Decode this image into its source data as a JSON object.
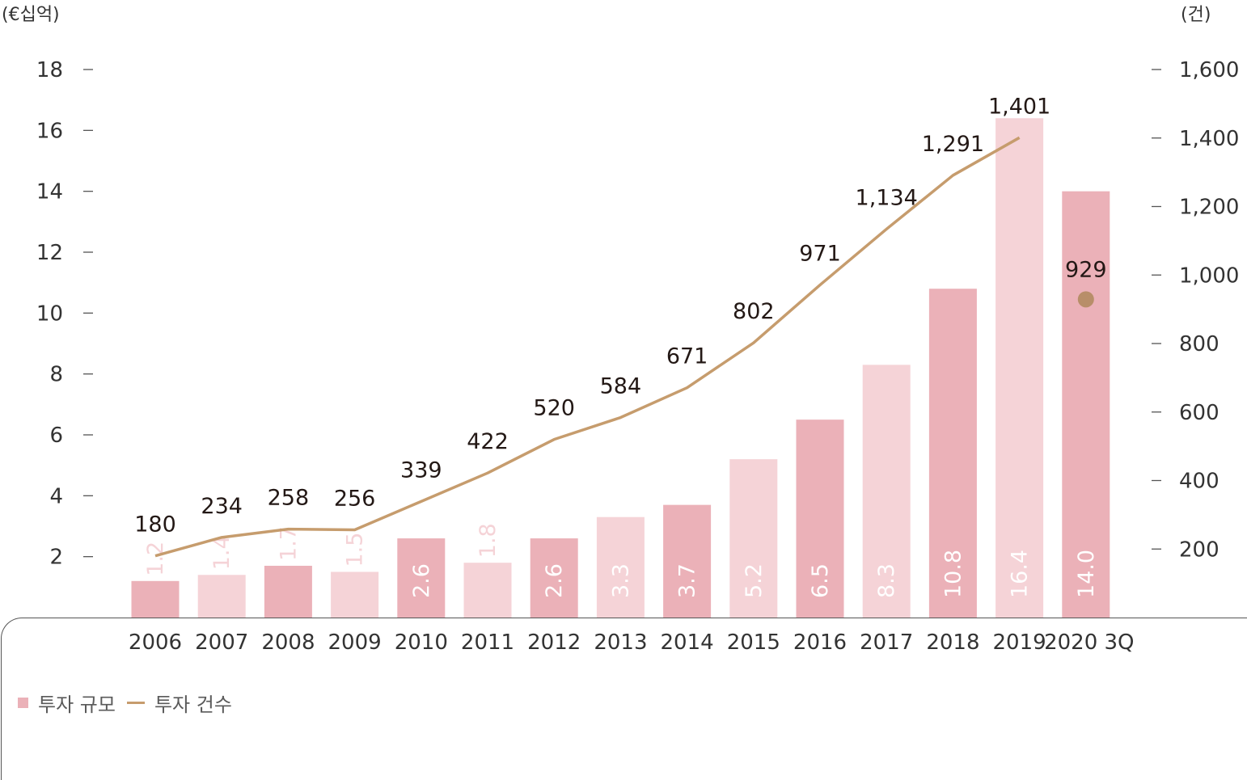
{
  "chart_data": {
    "type": "bar+line",
    "y_left_unit": "(€십억)",
    "y_right_unit": "(건)",
    "categories": [
      "2006",
      "2007",
      "2008",
      "2009",
      "2010",
      "2011",
      "2012",
      "2013",
      "2014",
      "2015",
      "2016",
      "2017",
      "2018",
      "2019",
      "2020 3Q"
    ],
    "bar_series": {
      "name": "투자 규모",
      "values": [
        1.2,
        1.4,
        1.7,
        1.5,
        2.6,
        1.8,
        2.6,
        3.3,
        3.7,
        5.2,
        6.5,
        8.3,
        10.8,
        16.4,
        14.0
      ],
      "value_labels": [
        "1.2",
        "1.4",
        "1.7",
        "1.5",
        "2.6",
        "1.8",
        "2.6",
        "3.3",
        "3.7",
        "5.2",
        "6.5",
        "8.3",
        "10.8",
        "16.4",
        "14.0"
      ]
    },
    "line_series": {
      "name": "투자 건수",
      "values": [
        180,
        234,
        258,
        256,
        339,
        422,
        520,
        584,
        671,
        802,
        971,
        1134,
        1291,
        1401,
        929
      ],
      "value_labels": [
        "180",
        "234",
        "258",
        "256",
        "339",
        "422",
        "520",
        "584",
        "671",
        "802",
        "971",
        "1,134",
        "1,291",
        "1,401",
        "929"
      ]
    },
    "y_left": {
      "ticks": [
        2,
        4,
        6,
        8,
        10,
        12,
        14,
        16,
        18
      ],
      "range": [
        0,
        20
      ]
    },
    "y_right": {
      "ticks": [
        200,
        400,
        600,
        800,
        1000,
        1200,
        1400,
        1600
      ],
      "tick_labels": [
        "200",
        "400",
        "600",
        "800",
        "1,000",
        "1,200",
        "1,400",
        "1,600"
      ],
      "range": [
        0,
        1800
      ]
    },
    "legend_position": "bottom-left"
  },
  "legend": {
    "bar_label": "투자 규모",
    "line_label": "투자 건수"
  },
  "colors": {
    "bar_dark": "#ebb1b8",
    "bar_light": "#f5d3d7",
    "line": "#c69c6d",
    "text": "#231815",
    "axis_text": "#333333"
  }
}
